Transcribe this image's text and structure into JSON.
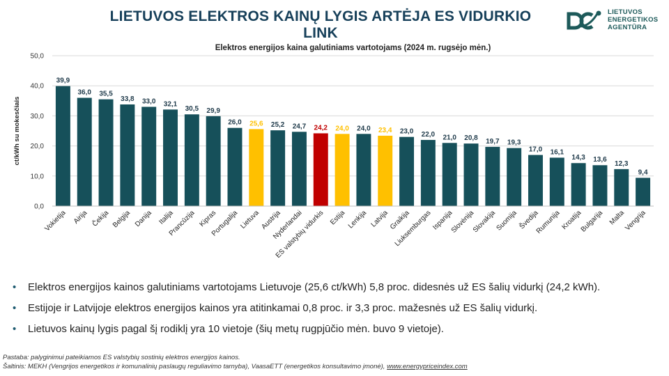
{
  "slide": {
    "title": "LIETUVOS ELEKTROS KAINŲ LYGIS ARTĖJA ES VIDURKIO LINK",
    "logo_lines": [
      "LIETUVOS",
      "ENERGETIKOS",
      "AGENTŪRA"
    ]
  },
  "colors": {
    "default_bar": "#16505a",
    "highlight_yellow": "#ffc000",
    "highlight_red": "#c00000",
    "title": "#17405a"
  },
  "chart_data": {
    "type": "bar",
    "title": "Elektros energijos kaina galutiniams vartotojams (2024 m. rugsėjo mėn.)",
    "ylabel": "ct/kWh su mokesčiais",
    "xlabel": "",
    "ylim": [
      0,
      50
    ],
    "yticks": [
      "0,0",
      "10,0",
      "20,0",
      "30,0",
      "40,0",
      "50,0"
    ],
    "grid": "horizontal",
    "categories": [
      "Vokietija",
      "Airija",
      "Čekija",
      "Belgija",
      "Danija",
      "Italija",
      "Prancūzija",
      "Kipras",
      "Portugalija",
      "Lietuva",
      "Austrija",
      "Nyderlandai",
      "ES valstybių vidurkis",
      "Estija",
      "Lenkija",
      "Latvija",
      "Graikija",
      "Liuksemburgas",
      "Ispanija",
      "Slovėnija",
      "Slovakija",
      "Suomija",
      "Švedija",
      "Rumunija",
      "Kroatija",
      "Bulgarija",
      "Malta",
      "Vengrija"
    ],
    "values": [
      39.9,
      36.0,
      35.5,
      33.8,
      33.0,
      32.1,
      30.5,
      29.9,
      26.0,
      25.6,
      25.2,
      24.7,
      24.2,
      24.0,
      24.0,
      23.4,
      23.0,
      22.0,
      21.0,
      20.8,
      19.7,
      19.3,
      17.0,
      16.1,
      14.3,
      13.6,
      12.3,
      9.4
    ],
    "value_labels": [
      "39,9",
      "36,0",
      "35,5",
      "33,8",
      "33,0",
      "32,1",
      "30,5",
      "29,9",
      "26,0",
      "25,6",
      "25,2",
      "24,7",
      "24,2",
      "24,0",
      "24,0",
      "23,4",
      "23,0",
      "22,0",
      "21,0",
      "20,8",
      "19,7",
      "19,3",
      "17,0",
      "16,1",
      "14,3",
      "13,6",
      "12,3",
      "9,4"
    ],
    "bar_colors": [
      "default",
      "default",
      "default",
      "default",
      "default",
      "default",
      "default",
      "default",
      "default",
      "yellow",
      "default",
      "default",
      "red",
      "yellow",
      "default",
      "yellow",
      "default",
      "default",
      "default",
      "default",
      "default",
      "default",
      "default",
      "default",
      "default",
      "default",
      "default",
      "default"
    ]
  },
  "bullets": [
    "Elektros energijos kainos galutiniams vartotojams Lietuvoje (25,6 ct/kWh) 5,8 proc. didesnės už ES šalių vidurkį (24,2 kWh).",
    "Estijoje ir Latvijoje elektros energijos kainos yra atitinkamai 0,8 proc. ir 3,3 proc. mažesnės už ES šalių vidurkį.",
    "Lietuvos kainų lygis pagal šį rodiklį yra 10 vietoje (šių metų rugpjūčio mėn. buvo 9 vietoje)."
  ],
  "footnote": {
    "note": "Pastaba: palyginimui pateikiamos ES valstybių sostinių elektros energijos kainos.",
    "source_prefix": "Šaltinis: MEKH (Vengrijos energetikos ir komunalinių paslaugų reguliavimo tarnyba), VaasaETT (energetikos konsultavimo įmonė), ",
    "source_link": "www.energypriceindex.com"
  }
}
